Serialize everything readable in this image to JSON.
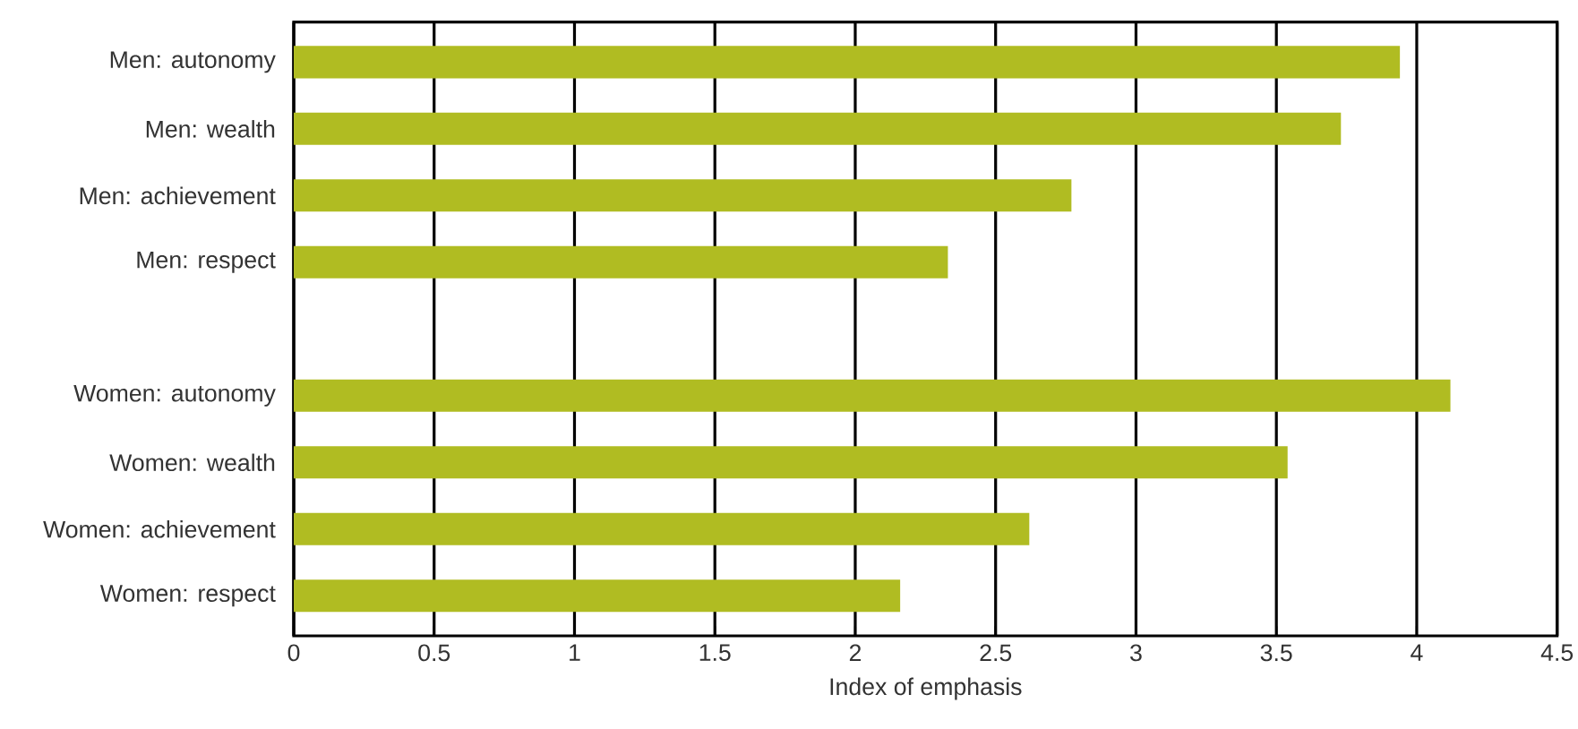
{
  "chart_data": {
    "type": "bar",
    "orientation": "horizontal",
    "xlabel": "Index of emphasis",
    "categories": [
      "Men: autonomy",
      "Men: wealth",
      "Men: achievement",
      "Men: respect",
      null,
      "Women: autonomy",
      "Women: wealth",
      "Women: achievement",
      "Women: respect"
    ],
    "values": [
      3.94,
      3.73,
      2.77,
      2.33,
      null,
      4.12,
      3.54,
      2.62,
      2.16
    ],
    "color": "#b0bc22",
    "xlim": [
      0,
      4.5
    ],
    "xticks": [
      0,
      0.5,
      1,
      1.5,
      2,
      2.5,
      3,
      3.5,
      4,
      4.5
    ],
    "grid": "x"
  }
}
